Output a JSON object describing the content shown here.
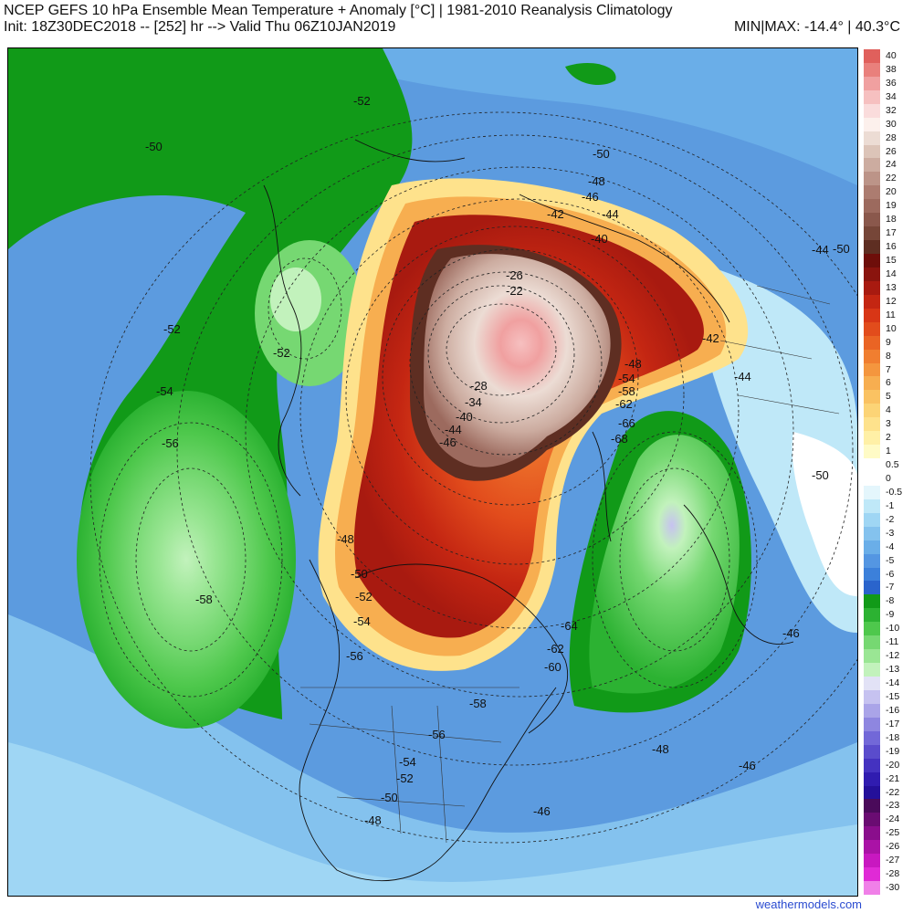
{
  "header": {
    "title": "NCEP GEFS 10 hPa Ensemble Mean Temperature + Anomaly [°C] | 1981-2010 Reanalysis Climatology",
    "subtitle": "Init: 18Z30DEC2018 -- [252] hr --> Valid Thu 06Z10JAN2019",
    "minmax": "MIN|MAX: -14.4° | 40.3°C"
  },
  "legend": {
    "entries": [
      {
        "label": "40",
        "color": "#e0605c"
      },
      {
        "label": "38",
        "color": "#e9807c"
      },
      {
        "label": "36",
        "color": "#f0a0a0"
      },
      {
        "label": "34",
        "color": "#f6c0c0"
      },
      {
        "label": "32",
        "color": "#fadcdc"
      },
      {
        "label": "30",
        "color": "#fcf0ec"
      },
      {
        "label": "28",
        "color": "#ecdcd4"
      },
      {
        "label": "26",
        "color": "#dcc4b8"
      },
      {
        "label": "24",
        "color": "#ccaca0"
      },
      {
        "label": "22",
        "color": "#bc9488"
      },
      {
        "label": "20",
        "color": "#ac7c70"
      },
      {
        "label": "19",
        "color": "#9c6a5e"
      },
      {
        "label": "18",
        "color": "#8a584c"
      },
      {
        "label": "17",
        "color": "#764638"
      },
      {
        "label": "16",
        "color": "#5e2e22"
      },
      {
        "label": "15",
        "color": "#6e0e0a"
      },
      {
        "label": "14",
        "color": "#8a140e"
      },
      {
        "label": "13",
        "color": "#a81a10"
      },
      {
        "label": "12",
        "color": "#c42612"
      },
      {
        "label": "11",
        "color": "#d83616"
      },
      {
        "label": "10",
        "color": "#e24c1c"
      },
      {
        "label": "9",
        "color": "#ea6424"
      },
      {
        "label": "8",
        "color": "#f07e30"
      },
      {
        "label": "7",
        "color": "#f4963e"
      },
      {
        "label": "6",
        "color": "#f7ae50"
      },
      {
        "label": "5",
        "color": "#fac262"
      },
      {
        "label": "4",
        "color": "#fcd476"
      },
      {
        "label": "3",
        "color": "#fee28c"
      },
      {
        "label": "2",
        "color": "#fff0a6"
      },
      {
        "label": "1",
        "color": "#fffbc6"
      },
      {
        "label": "0.5",
        "color": "#ffffff"
      },
      {
        "label": "0",
        "color": "#ffffff"
      },
      {
        "label": "-0.5",
        "color": "#e4f6fc"
      },
      {
        "label": "-1",
        "color": "#bfe8f8"
      },
      {
        "label": "-2",
        "color": "#9fd6f4"
      },
      {
        "label": "-3",
        "color": "#84c2ee"
      },
      {
        "label": "-4",
        "color": "#6aaee8"
      },
      {
        "label": "-5",
        "color": "#5496e2"
      },
      {
        "label": "-6",
        "color": "#3c80da"
      },
      {
        "label": "-7",
        "color": "#2a64cc"
      },
      {
        "label": "-8",
        "color": "#119a18"
      },
      {
        "label": "-9",
        "color": "#2cb232"
      },
      {
        "label": "-10",
        "color": "#4ec84c"
      },
      {
        "label": "-11",
        "color": "#76d872"
      },
      {
        "label": "-12",
        "color": "#9ae694"
      },
      {
        "label": "-13",
        "color": "#c2f2bc"
      },
      {
        "label": "-14",
        "color": "#e2e2f6"
      },
      {
        "label": "-15",
        "color": "#c6c2f0"
      },
      {
        "label": "-16",
        "color": "#aaa4e8"
      },
      {
        "label": "-17",
        "color": "#8e86e0"
      },
      {
        "label": "-18",
        "color": "#7268d8"
      },
      {
        "label": "-19",
        "color": "#5a4ccc"
      },
      {
        "label": "-20",
        "color": "#4432c0"
      },
      {
        "label": "-21",
        "color": "#301cb0"
      },
      {
        "label": "-22",
        "color": "#24109a"
      },
      {
        "label": "-23",
        "color": "#4a0a5a"
      },
      {
        "label": "-24",
        "color": "#6a0c72"
      },
      {
        "label": "-25",
        "color": "#8a0e8c"
      },
      {
        "label": "-26",
        "color": "#aa12a6"
      },
      {
        "label": "-27",
        "color": "#c818c0"
      },
      {
        "label": "-28",
        "color": "#e02ad6"
      },
      {
        "label": "-30",
        "color": "#f080e8"
      }
    ]
  },
  "contour_labels": [
    "-50",
    "-52",
    "-50",
    "-52",
    "-54",
    "-56",
    "-58",
    "-52",
    "-48",
    "-46",
    "-50",
    "-42",
    "-44",
    "-40",
    "-26",
    "-22",
    "-28",
    "-34",
    "-40",
    "-44",
    "-46",
    "-42",
    "-44",
    "-48",
    "-54",
    "-58",
    "-62",
    "-66",
    "-68",
    "-50",
    "-44",
    "-48",
    "-50",
    "-52",
    "-54",
    "-56",
    "-58",
    "-56",
    "-54",
    "-52",
    "-50",
    "-48",
    "-46",
    "-64",
    "-62",
    "-60",
    "-46",
    "-48",
    "-46"
  ],
  "credit": "weathermodels.com"
}
